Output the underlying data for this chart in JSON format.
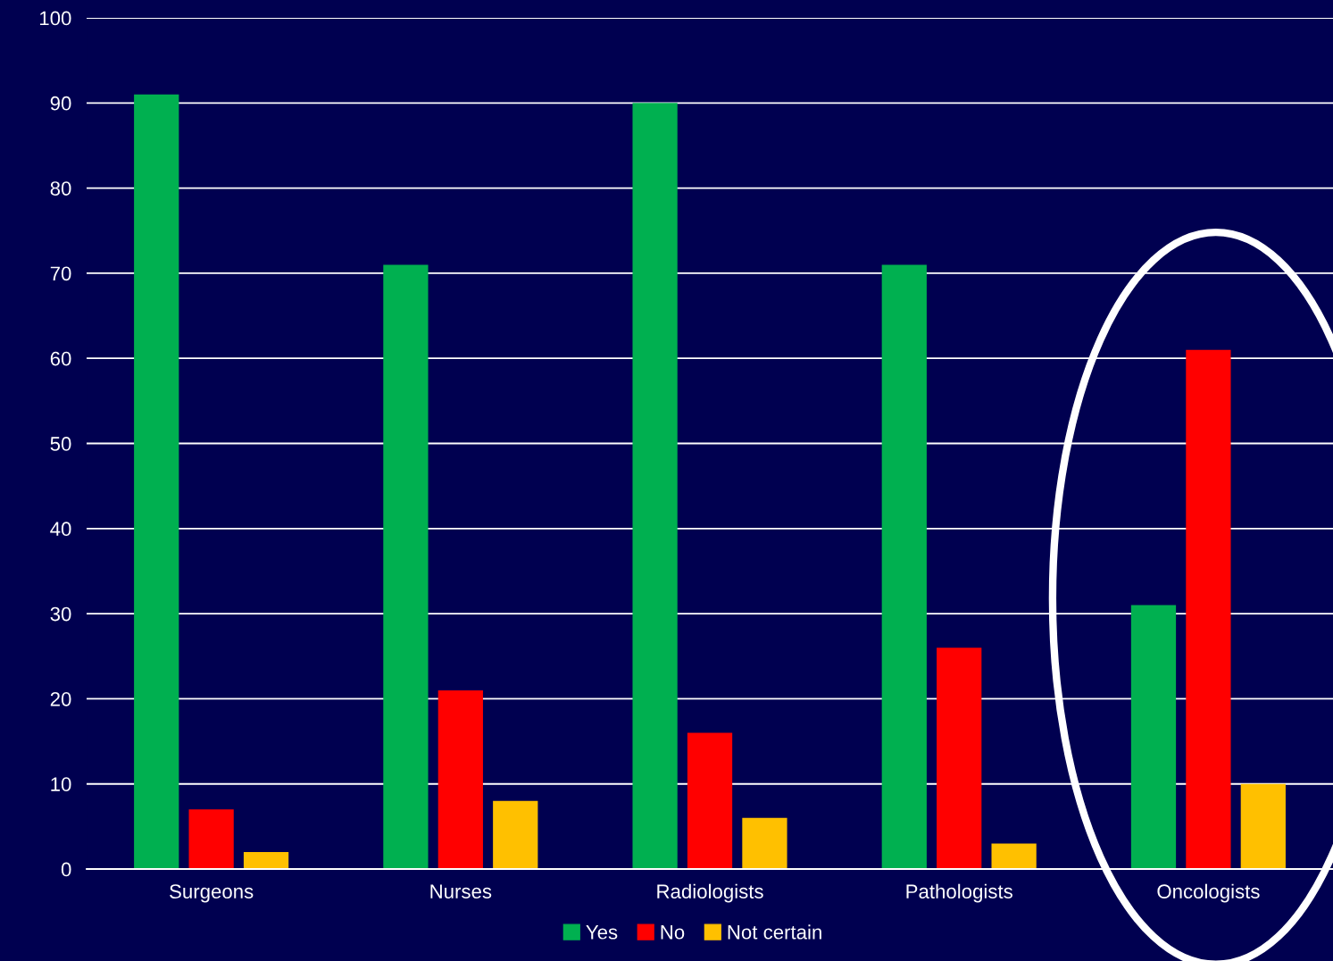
{
  "chart_data": {
    "type": "bar",
    "categories": [
      "Surgeons",
      "Nurses",
      "Radiologists",
      "Pathologists",
      "Oncologists"
    ],
    "series": [
      {
        "name": "Yes",
        "color": "#00b050",
        "values": [
          91,
          71,
          90,
          71,
          31
        ]
      },
      {
        "name": "No",
        "color": "#ff0000",
        "values": [
          7,
          21,
          16,
          26,
          61
        ]
      },
      {
        "name": "Not certain",
        "color": "#ffc000",
        "values": [
          2,
          8,
          6,
          3,
          10
        ]
      }
    ],
    "ylim": [
      0,
      100
    ],
    "yticks": [
      0,
      10,
      20,
      30,
      40,
      50,
      60,
      70,
      80,
      90,
      100
    ],
    "grid": "y",
    "legend": "bottom"
  }
}
